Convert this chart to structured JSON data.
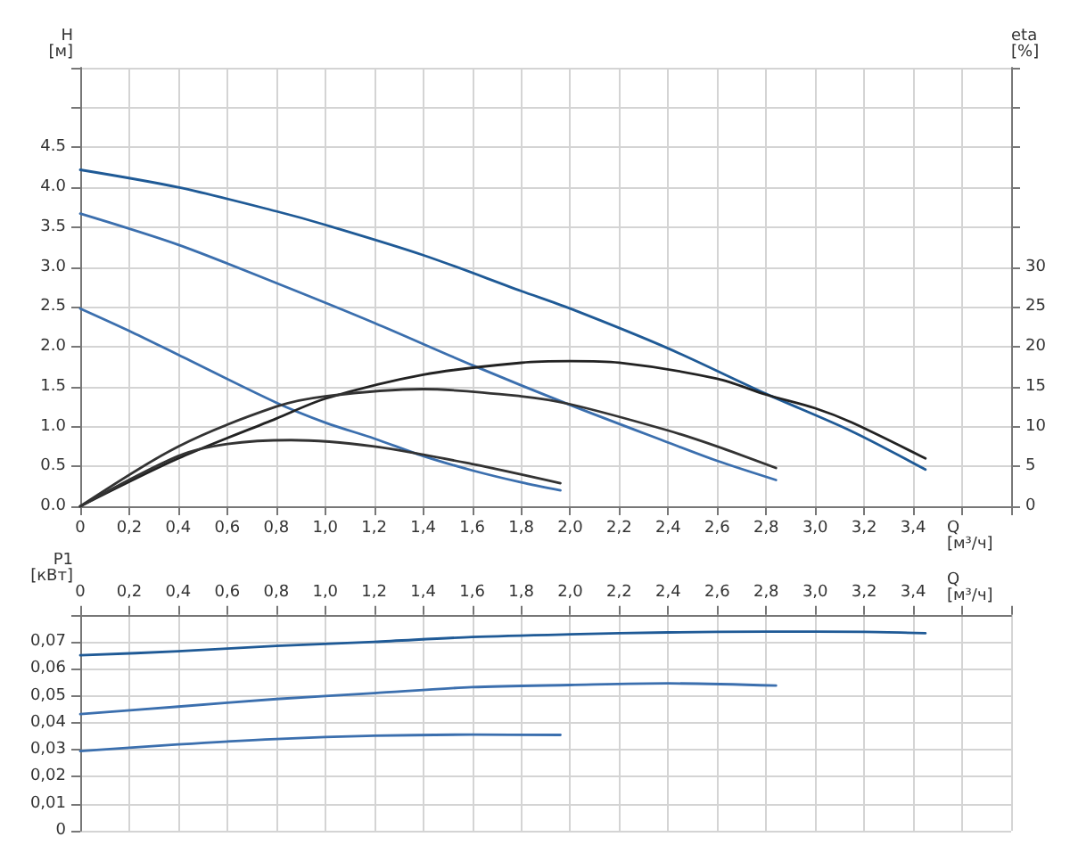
{
  "chart_data": [
    {
      "type": "line",
      "xlabel": "Q [м³/ч]",
      "ylabel": "H [м]",
      "y2label": "eta [%]",
      "grid": true,
      "marker": "none",
      "line_style": "solid",
      "xlim": [
        0,
        3.8
      ],
      "xticks": [
        0,
        {
          "value": 0.2,
          "label": "0,2"
        },
        {
          "value": 0.4,
          "label": "0,4"
        },
        {
          "value": 0.6,
          "label": "0,6"
        },
        {
          "value": 0.8,
          "label": "0,8"
        },
        {
          "value": 1,
          "label": "1,0"
        },
        {
          "value": 1.2,
          "label": "1,2"
        },
        {
          "value": 1.4,
          "label": "1,4"
        },
        {
          "value": 1.6,
          "label": "1,6"
        },
        {
          "value": 1.8,
          "label": "1,8"
        },
        {
          "value": 2,
          "label": "2,0"
        },
        {
          "value": 2.2,
          "label": "2,2"
        },
        {
          "value": 2.4,
          "label": "2,4"
        },
        {
          "value": 2.6,
          "label": "2,6"
        },
        {
          "value": 2.8,
          "label": "2,8"
        },
        {
          "value": 3,
          "label": "3,0"
        },
        {
          "value": 3.2,
          "label": "3,2"
        },
        {
          "value": 3.4,
          "label": "3,4"
        },
        {
          "value": 3.6,
          "label": null
        }
      ],
      "ylim": [
        0,
        5.5
      ],
      "yticks": [
        {
          "value": 0,
          "label": "0.0"
        },
        0.5,
        {
          "value": 1,
          "label": "1.0"
        },
        1.5,
        {
          "value": 2,
          "label": "2.0"
        },
        2.5,
        {
          "value": 3,
          "label": "3.0"
        },
        3.5,
        {
          "value": 4,
          "label": "4.0"
        },
        4.5,
        {
          "value": 5,
          "label": null
        },
        {
          "value": 5.5,
          "label": null
        }
      ],
      "y2lim": [
        0,
        55
      ],
      "y2ticks": [
        0,
        5,
        10,
        15,
        20,
        25,
        30
      ],
      "series": [
        {
          "color": "#1f5a96",
          "x": [
            0,
            0.4,
            0.8,
            1.0,
            1.4,
            1.8,
            2.0,
            2.4,
            2.8,
            3.15,
            3.45
          ],
          "values": [
            4.22,
            4.0,
            3.7,
            3.53,
            3.15,
            2.7,
            2.48,
            1.98,
            1.41,
            0.94,
            0.46
          ]
        },
        {
          "color": "#3b6fae",
          "x": [
            0,
            0.4,
            0.8,
            1.2,
            1.6,
            2.0,
            2.4,
            2.6,
            2.84
          ],
          "values": [
            3.67,
            3.28,
            2.8,
            2.3,
            1.77,
            1.27,
            0.8,
            0.57,
            0.33
          ]
        },
        {
          "color": "#3b6fae",
          "x": [
            0,
            0.2,
            0.4,
            0.8,
            1.0,
            1.2,
            1.4,
            1.6,
            1.8,
            1.96
          ],
          "values": [
            2.48,
            2.2,
            1.9,
            1.3,
            1.05,
            0.85,
            0.63,
            0.45,
            0.3,
            0.2
          ]
        },
        {
          "color": "#222222",
          "axis": "y2",
          "x": [
            0,
            0.4,
            0.8,
            1.0,
            1.4,
            1.8,
            2.0,
            2.2,
            2.6,
            2.8,
            3.0,
            3.15,
            3.45
          ],
          "values": [
            0,
            6,
            11,
            13.5,
            16.5,
            18,
            18.2,
            18,
            16,
            14,
            12.3,
            10.5,
            6
          ]
        },
        {
          "color": "#333333",
          "axis": "y2",
          "x": [
            0,
            0.4,
            0.8,
            1.0,
            1.4,
            1.8,
            2.0,
            2.4,
            2.6,
            2.84
          ],
          "values": [
            0,
            7.5,
            12.5,
            13.8,
            14.7,
            13.8,
            12.8,
            9.5,
            7.5,
            4.8
          ]
        },
        {
          "color": "#333333",
          "axis": "y2",
          "x": [
            0,
            0.4,
            0.6,
            0.86,
            1.2,
            1.6,
            1.96
          ],
          "values": [
            0,
            6.3,
            7.8,
            8.3,
            7.5,
            5.3,
            2.9
          ]
        }
      ]
    },
    {
      "type": "line",
      "xlabel": "Q [м³/ч]",
      "ylabel": "P1 [кВт]",
      "grid": true,
      "marker": "none",
      "line_style": "solid",
      "xlim": [
        0,
        3.8
      ],
      "xticks": [
        0,
        {
          "value": 0.2,
          "label": "0,2"
        },
        {
          "value": 0.4,
          "label": "0,4"
        },
        {
          "value": 0.6,
          "label": "0,6"
        },
        {
          "value": 0.8,
          "label": "0,8"
        },
        {
          "value": 1,
          "label": "1,0"
        },
        {
          "value": 1.2,
          "label": "1,2"
        },
        {
          "value": 1.4,
          "label": "1,4"
        },
        {
          "value": 1.6,
          "label": "1,6"
        },
        {
          "value": 1.8,
          "label": "1,8"
        },
        {
          "value": 2,
          "label": "2,0"
        },
        {
          "value": 2.2,
          "label": "2,2"
        },
        {
          "value": 2.4,
          "label": "2,4"
        },
        {
          "value": 2.6,
          "label": "2,6"
        },
        {
          "value": 2.8,
          "label": "2,8"
        },
        {
          "value": 3,
          "label": "3,0"
        },
        {
          "value": 3.2,
          "label": "3,2"
        },
        {
          "value": 3.4,
          "label": "3,4"
        },
        {
          "value": 3.6,
          "label": null
        }
      ],
      "ylim": [
        0,
        0.08
      ],
      "yticks": [
        0,
        {
          "value": 0.01,
          "label": "0,01"
        },
        {
          "value": 0.02,
          "label": "0,02"
        },
        {
          "value": 0.03,
          "label": "0,03"
        },
        {
          "value": 0.04,
          "label": "0,04"
        },
        {
          "value": 0.05,
          "label": "0,05"
        },
        {
          "value": 0.06,
          "label": "0,06"
        },
        {
          "value": 0.07,
          "label": "0,07"
        },
        {
          "value": 0.08,
          "label": null
        }
      ],
      "series": [
        {
          "color": "#1f5a96",
          "x": [
            0,
            0.4,
            0.8,
            1.2,
            1.6,
            2.0,
            2.4,
            2.8,
            3.2,
            3.45
          ],
          "values": [
            0.065,
            0.0665,
            0.0685,
            0.07,
            0.0718,
            0.0728,
            0.0735,
            0.0738,
            0.0737,
            0.0732
          ]
        },
        {
          "color": "#3b6fae",
          "x": [
            0,
            0.4,
            0.8,
            1.2,
            1.6,
            2.0,
            2.4,
            2.84
          ],
          "values": [
            0.0432,
            0.046,
            0.0488,
            0.051,
            0.0532,
            0.054,
            0.0546,
            0.0538
          ]
        },
        {
          "color": "#3b6fae",
          "x": [
            0,
            0.4,
            0.8,
            1.2,
            1.6,
            1.96
          ],
          "values": [
            0.0295,
            0.032,
            0.034,
            0.0352,
            0.0356,
            0.0355
          ]
        }
      ]
    }
  ]
}
